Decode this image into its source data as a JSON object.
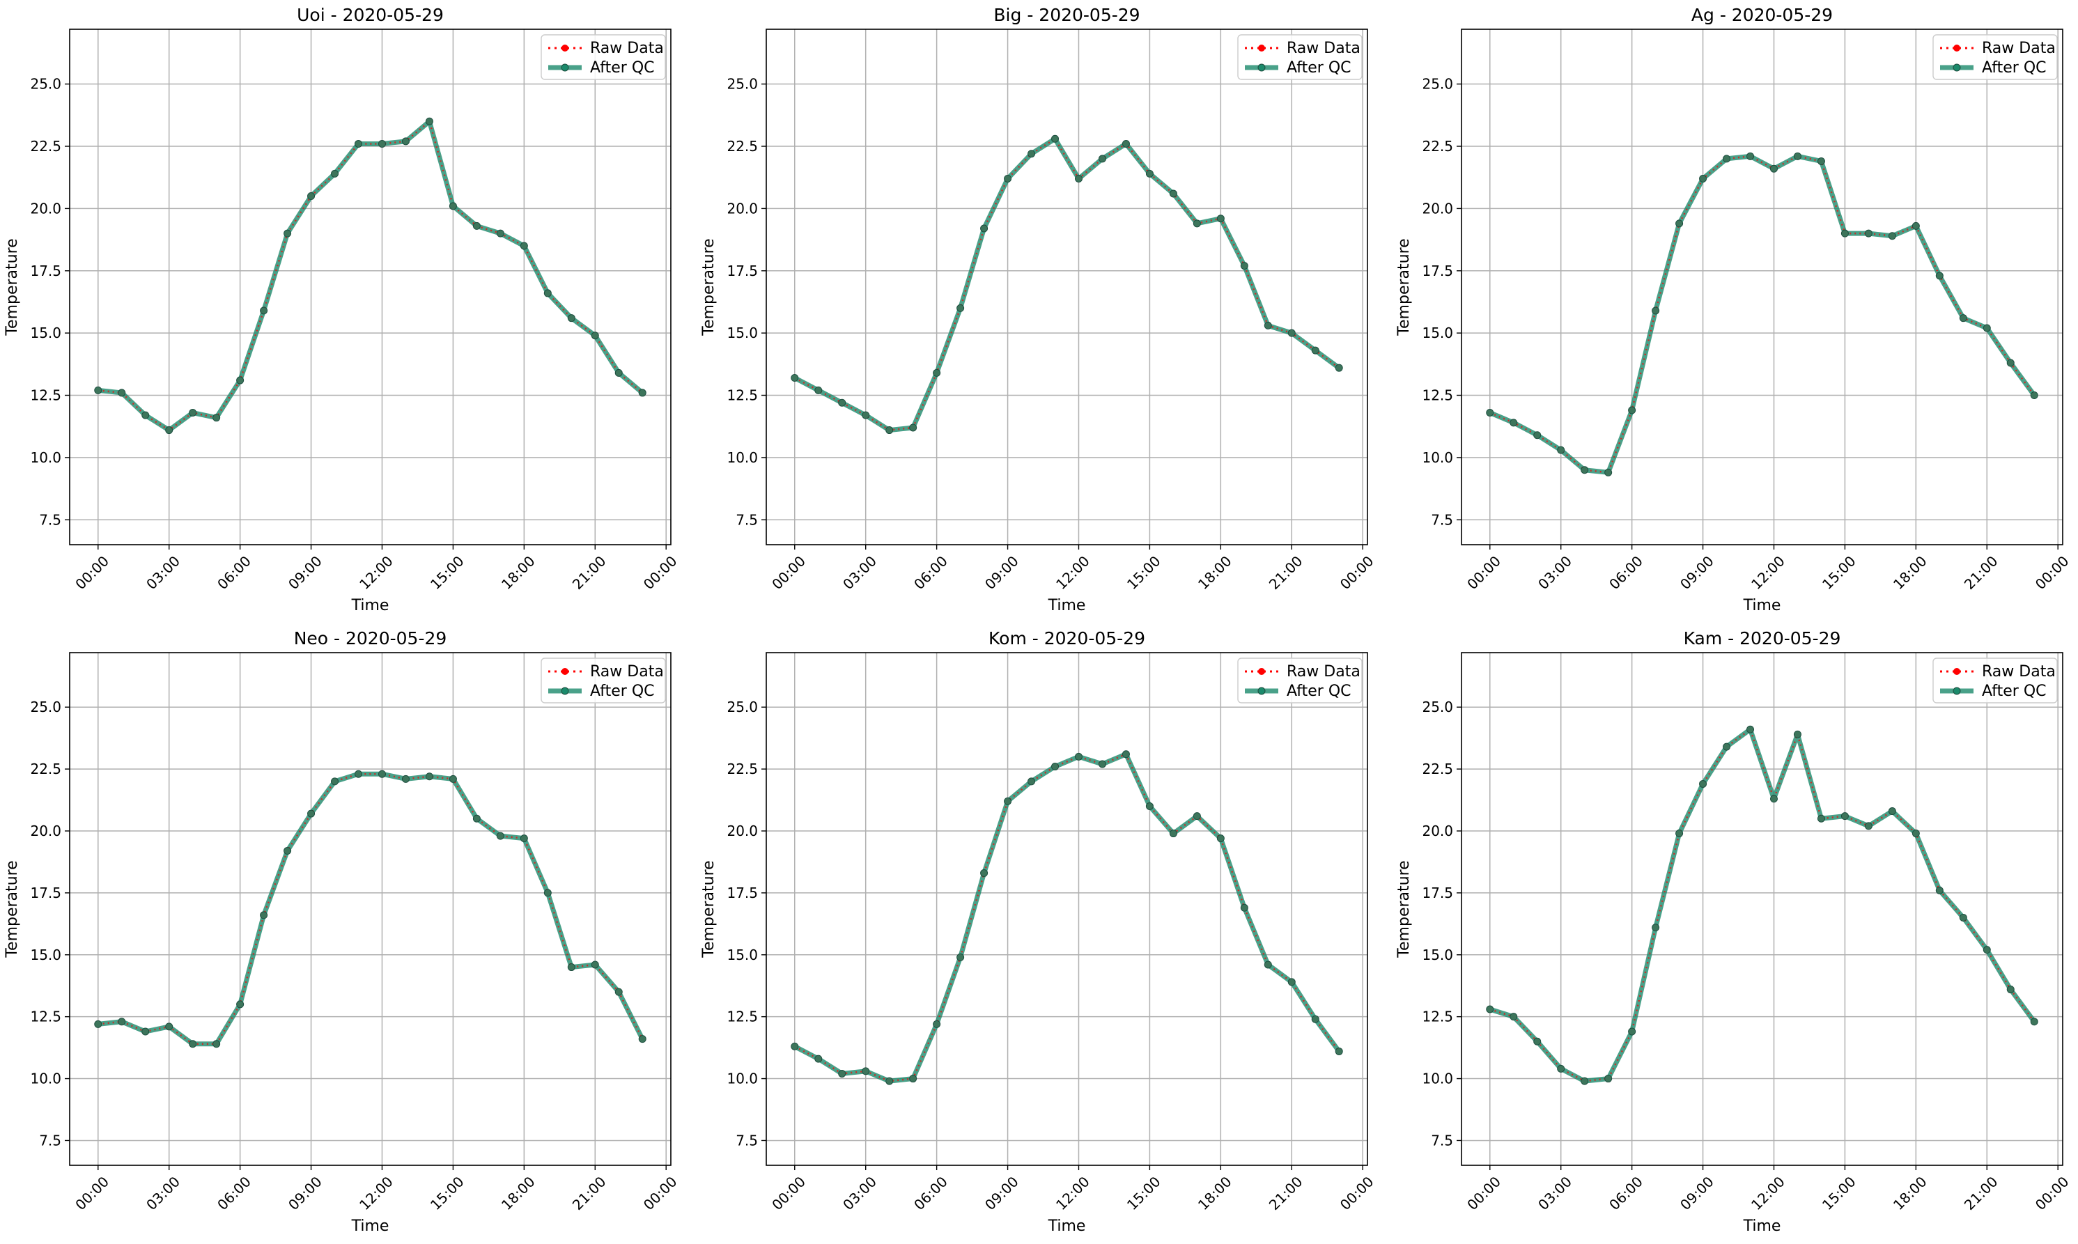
{
  "figure": {
    "legend": {
      "raw_label": "Raw Data",
      "qc_label": "After QC",
      "placement": "upper right"
    },
    "colors": {
      "raw": "#ff0000",
      "qc": "#1b8a6b",
      "grid": "#b0b0b0",
      "axes": "#000000"
    }
  },
  "chart_data": [
    {
      "type": "line",
      "title": "Uoi - 2020-05-29",
      "xlabel": "Time",
      "ylabel": "Temperature",
      "x_ticks": [
        "00:00",
        "03:00",
        "06:00",
        "09:00",
        "12:00",
        "15:00",
        "18:00",
        "21:00",
        "00:00"
      ],
      "x_hours": [
        0,
        1,
        2,
        3,
        4,
        5,
        6,
        7,
        8,
        9,
        10,
        11,
        12,
        13,
        14,
        15,
        16,
        17,
        18,
        19,
        20,
        21,
        22,
        23
      ],
      "xlim_hours": [
        -1.2,
        24.2
      ],
      "ylim": [
        6.5,
        27.2
      ],
      "y_ticks": [
        "7.5",
        "10.0",
        "12.5",
        "15.0",
        "17.5",
        "20.0",
        "22.5",
        "25.0"
      ],
      "grid": true,
      "series": [
        {
          "name": "Raw Data",
          "values": [
            12.7,
            12.6,
            11.7,
            11.1,
            11.8,
            11.6,
            13.1,
            15.9,
            19.0,
            20.5,
            21.4,
            22.6,
            22.6,
            22.7,
            23.5,
            20.1,
            19.3,
            19.0,
            18.5,
            16.6,
            15.6,
            14.9,
            13.4,
            12.6
          ]
        },
        {
          "name": "After QC",
          "values": [
            12.7,
            12.6,
            11.7,
            11.1,
            11.8,
            11.6,
            13.1,
            15.9,
            19.0,
            20.5,
            21.4,
            22.6,
            22.6,
            22.7,
            23.5,
            20.1,
            19.3,
            19.0,
            18.5,
            16.6,
            15.6,
            14.9,
            13.4,
            12.6
          ]
        }
      ]
    },
    {
      "type": "line",
      "title": "Big - 2020-05-29",
      "xlabel": "Time",
      "ylabel": "Temperature",
      "x_ticks": [
        "00:00",
        "03:00",
        "06:00",
        "09:00",
        "12:00",
        "15:00",
        "18:00",
        "21:00",
        "00:00"
      ],
      "x_hours": [
        0,
        1,
        2,
        3,
        4,
        5,
        6,
        7,
        8,
        9,
        10,
        11,
        12,
        13,
        14,
        15,
        16,
        17,
        18,
        19,
        20,
        21,
        22,
        23
      ],
      "xlim_hours": [
        -1.2,
        24.2
      ],
      "ylim": [
        6.5,
        27.2
      ],
      "y_ticks": [
        "7.5",
        "10.0",
        "12.5",
        "15.0",
        "17.5",
        "20.0",
        "22.5",
        "25.0"
      ],
      "grid": true,
      "series": [
        {
          "name": "Raw Data",
          "values": [
            13.2,
            12.7,
            12.2,
            11.7,
            11.1,
            11.2,
            13.4,
            16.0,
            19.2,
            21.2,
            22.2,
            22.8,
            21.2,
            22.0,
            22.6,
            21.4,
            20.6,
            19.4,
            19.6,
            17.7,
            15.3,
            15.0,
            14.3,
            13.6
          ]
        },
        {
          "name": "After QC",
          "values": [
            13.2,
            12.7,
            12.2,
            11.7,
            11.1,
            11.2,
            13.4,
            16.0,
            19.2,
            21.2,
            22.2,
            22.8,
            21.2,
            22.0,
            22.6,
            21.4,
            20.6,
            19.4,
            19.6,
            17.7,
            15.3,
            15.0,
            14.3,
            13.6
          ]
        }
      ]
    },
    {
      "type": "line",
      "title": "Ag - 2020-05-29",
      "xlabel": "Time",
      "ylabel": "Temperature",
      "x_ticks": [
        "00:00",
        "03:00",
        "06:00",
        "09:00",
        "12:00",
        "15:00",
        "18:00",
        "21:00",
        "00:00"
      ],
      "x_hours": [
        0,
        1,
        2,
        3,
        4,
        5,
        6,
        7,
        8,
        9,
        10,
        11,
        12,
        13,
        14,
        15,
        16,
        17,
        18,
        19,
        20,
        21,
        22,
        23
      ],
      "xlim_hours": [
        -1.2,
        24.2
      ],
      "ylim": [
        6.5,
        27.2
      ],
      "y_ticks": [
        "7.5",
        "10.0",
        "12.5",
        "15.0",
        "17.5",
        "20.0",
        "22.5",
        "25.0"
      ],
      "grid": true,
      "series": [
        {
          "name": "Raw Data",
          "values": [
            11.8,
            11.4,
            10.9,
            10.3,
            9.5,
            9.4,
            11.9,
            15.9,
            19.4,
            21.2,
            22.0,
            22.1,
            21.6,
            22.1,
            21.9,
            19.0,
            19.0,
            18.9,
            19.3,
            17.3,
            15.6,
            15.2,
            13.8,
            12.5
          ]
        },
        {
          "name": "After QC",
          "values": [
            11.8,
            11.4,
            10.9,
            10.3,
            9.5,
            9.4,
            11.9,
            15.9,
            19.4,
            21.2,
            22.0,
            22.1,
            21.6,
            22.1,
            21.9,
            19.0,
            19.0,
            18.9,
            19.3,
            17.3,
            15.6,
            15.2,
            13.8,
            12.5
          ]
        }
      ]
    },
    {
      "type": "line",
      "title": "Neo - 2020-05-29",
      "xlabel": "Time",
      "ylabel": "Temperature",
      "x_ticks": [
        "00:00",
        "03:00",
        "06:00",
        "09:00",
        "12:00",
        "15:00",
        "18:00",
        "21:00",
        "00:00"
      ],
      "x_hours": [
        0,
        1,
        2,
        3,
        4,
        5,
        6,
        7,
        8,
        9,
        10,
        11,
        12,
        13,
        14,
        15,
        16,
        17,
        18,
        19,
        20,
        21,
        22,
        23
      ],
      "xlim_hours": [
        -1.2,
        24.2
      ],
      "ylim": [
        6.5,
        27.2
      ],
      "y_ticks": [
        "7.5",
        "10.0",
        "12.5",
        "15.0",
        "17.5",
        "20.0",
        "22.5",
        "25.0"
      ],
      "grid": true,
      "series": [
        {
          "name": "Raw Data",
          "values": [
            12.2,
            12.3,
            11.9,
            12.1,
            11.4,
            11.4,
            13.0,
            16.6,
            19.2,
            20.7,
            22.0,
            22.3,
            22.3,
            22.1,
            22.2,
            22.1,
            20.5,
            19.8,
            19.7,
            17.5,
            14.5,
            14.6,
            13.5,
            11.6
          ]
        },
        {
          "name": "After QC",
          "values": [
            12.2,
            12.3,
            11.9,
            12.1,
            11.4,
            11.4,
            13.0,
            16.6,
            19.2,
            20.7,
            22.0,
            22.3,
            22.3,
            22.1,
            22.2,
            22.1,
            20.5,
            19.8,
            19.7,
            17.5,
            14.5,
            14.6,
            13.5,
            11.6
          ]
        }
      ]
    },
    {
      "type": "line",
      "title": "Kom - 2020-05-29",
      "xlabel": "Time",
      "ylabel": "Temperature",
      "x_ticks": [
        "00:00",
        "03:00",
        "06:00",
        "09:00",
        "12:00",
        "15:00",
        "18:00",
        "21:00",
        "00:00"
      ],
      "x_hours": [
        0,
        1,
        2,
        3,
        4,
        5,
        6,
        7,
        8,
        9,
        10,
        11,
        12,
        13,
        14,
        15,
        16,
        17,
        18,
        19,
        20,
        21,
        22,
        23
      ],
      "xlim_hours": [
        -1.2,
        24.2
      ],
      "ylim": [
        6.5,
        27.2
      ],
      "y_ticks": [
        "7.5",
        "10.0",
        "12.5",
        "15.0",
        "17.5",
        "20.0",
        "22.5",
        "25.0"
      ],
      "grid": true,
      "series": [
        {
          "name": "Raw Data",
          "values": [
            11.3,
            10.8,
            10.2,
            10.3,
            9.9,
            10.0,
            12.2,
            14.9,
            18.3,
            21.2,
            22.0,
            22.6,
            23.0,
            22.7,
            23.1,
            21.0,
            19.9,
            20.6,
            19.7,
            16.9,
            14.6,
            13.9,
            12.4,
            11.1
          ]
        },
        {
          "name": "After QC",
          "values": [
            11.3,
            10.8,
            10.2,
            10.3,
            9.9,
            10.0,
            12.2,
            14.9,
            18.3,
            21.2,
            22.0,
            22.6,
            23.0,
            22.7,
            23.1,
            21.0,
            19.9,
            20.6,
            19.7,
            16.9,
            14.6,
            13.9,
            12.4,
            11.1
          ]
        }
      ]
    },
    {
      "type": "line",
      "title": "Kam - 2020-05-29",
      "xlabel": "Time",
      "ylabel": "Temperature",
      "x_ticks": [
        "00:00",
        "03:00",
        "06:00",
        "09:00",
        "12:00",
        "15:00",
        "18:00",
        "21:00",
        "00:00"
      ],
      "x_hours": [
        0,
        1,
        2,
        3,
        4,
        5,
        6,
        7,
        8,
        9,
        10,
        11,
        12,
        13,
        14,
        15,
        16,
        17,
        18,
        19,
        20,
        21,
        22,
        23
      ],
      "xlim_hours": [
        -1.2,
        24.2
      ],
      "ylim": [
        6.5,
        27.2
      ],
      "y_ticks": [
        "7.5",
        "10.0",
        "12.5",
        "15.0",
        "17.5",
        "20.0",
        "22.5",
        "25.0"
      ],
      "grid": true,
      "series": [
        {
          "name": "Raw Data",
          "values": [
            12.8,
            12.5,
            11.5,
            10.4,
            9.9,
            10.0,
            11.9,
            16.1,
            19.9,
            21.9,
            23.4,
            24.1,
            21.3,
            23.9,
            20.5,
            20.6,
            20.2,
            20.8,
            19.9,
            17.6,
            16.5,
            15.2,
            13.6,
            12.3
          ]
        },
        {
          "name": "After QC",
          "values": [
            12.8,
            12.5,
            11.5,
            10.4,
            9.9,
            10.0,
            11.9,
            16.1,
            19.9,
            21.9,
            23.4,
            24.1,
            21.3,
            23.9,
            20.5,
            20.6,
            20.2,
            20.8,
            19.9,
            17.6,
            16.5,
            15.2,
            13.6,
            12.3
          ]
        }
      ]
    }
  ]
}
